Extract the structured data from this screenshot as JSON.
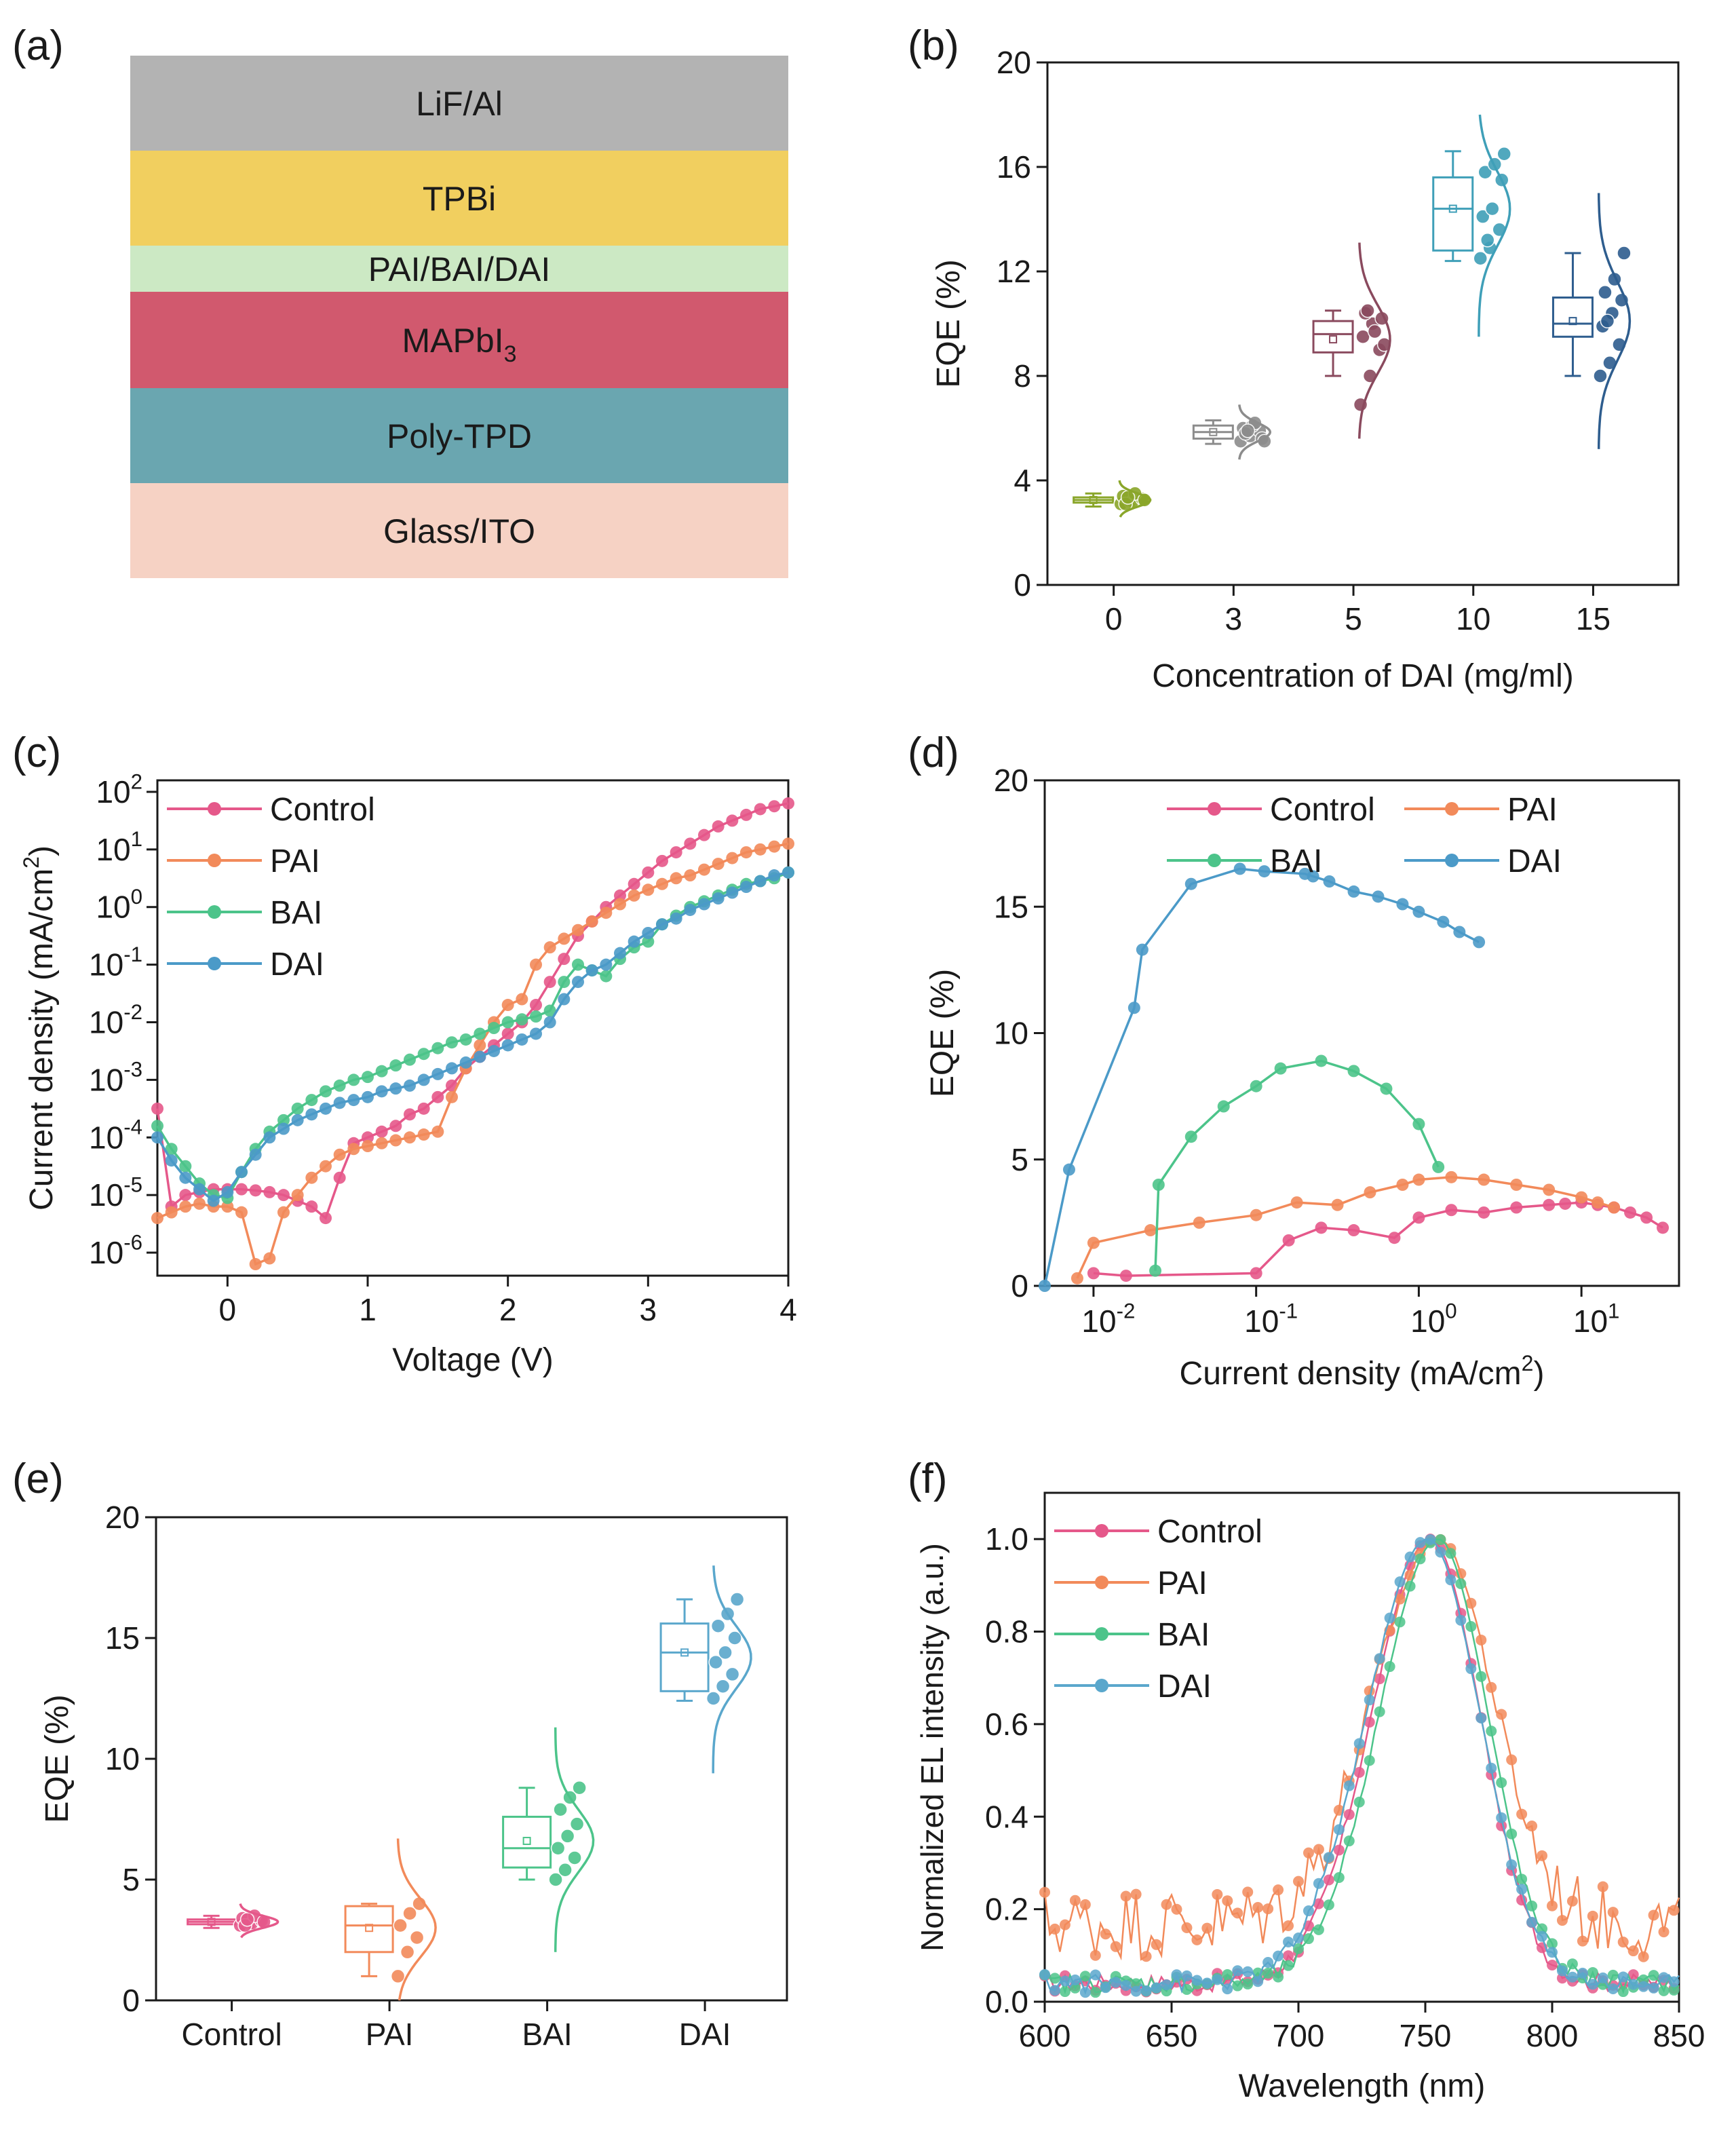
{
  "panels": {
    "a": {
      "label": "(a)",
      "layers": [
        {
          "name": "LiF/Al",
          "color": "#b3b3b3"
        },
        {
          "name": "TPBi",
          "color": "#f1cf5f"
        },
        {
          "name": "PAI/BAI/DAI",
          "color": "#cce9c4"
        },
        {
          "name": "MAPbI3",
          "color": "#d1596e"
        },
        {
          "name": "Poly-TPD",
          "color": "#6aa6b0"
        },
        {
          "name": "Glass/ITO",
          "color": "#f6d2c4"
        }
      ]
    },
    "b": {
      "label": "(b)"
    },
    "c": {
      "label": "(c)"
    },
    "d": {
      "label": "(d)"
    },
    "e": {
      "label": "(e)"
    },
    "f": {
      "label": "(f)"
    }
  },
  "chart_data": [
    {
      "panel": "b",
      "type": "box",
      "xlabel": "Concentration of DAI (mg/ml)",
      "ylabel": "EQE (%)",
      "ylim": [
        0,
        20
      ],
      "yticks": [
        0,
        4,
        8,
        12,
        16,
        20
      ],
      "categories": [
        "0",
        "3",
        "5",
        "10",
        "15"
      ],
      "colors": [
        "#8aa62a",
        "#8c8c8c",
        "#8a4a5e",
        "#3f9fb8",
        "#2e5d8e"
      ],
      "boxes": [
        {
          "min": 3.0,
          "q1": 3.15,
          "median": 3.25,
          "q3": 3.35,
          "max": 3.5,
          "mean": 3.25
        },
        {
          "min": 5.4,
          "q1": 5.6,
          "median": 5.85,
          "q3": 6.1,
          "max": 6.3,
          "mean": 5.85
        },
        {
          "min": 8.0,
          "q1": 8.9,
          "median": 9.6,
          "q3": 10.1,
          "max": 10.5,
          "mean": 9.4
        },
        {
          "min": 12.4,
          "q1": 12.8,
          "median": 14.4,
          "q3": 15.6,
          "max": 16.6,
          "mean": 14.4
        },
        {
          "min": 8.0,
          "q1": 9.5,
          "median": 10.0,
          "q3": 11.0,
          "max": 12.7,
          "mean": 10.1
        }
      ],
      "points": [
        [
          3.1,
          3.2,
          3.3,
          3.4,
          3.2,
          3.3,
          3.1,
          3.5,
          3.25,
          3.35
        ],
        [
          5.5,
          5.7,
          5.9,
          6.0,
          6.1,
          5.6,
          5.8,
          6.2,
          5.5,
          5.9
        ],
        [
          6.9,
          8.0,
          9.0,
          9.5,
          10.0,
          10.2,
          10.4,
          9.7,
          9.2,
          10.5
        ],
        [
          12.5,
          12.9,
          13.6,
          14.1,
          14.4,
          15.5,
          15.8,
          16.1,
          16.5,
          13.2
        ],
        [
          8.0,
          8.5,
          9.2,
          9.9,
          10.4,
          10.9,
          11.2,
          11.7,
          12.7,
          10.1
        ]
      ],
      "curves": [
        {
          "mean": 3.25,
          "sd": 0.25,
          "lo": 2.6,
          "hi": 4.0
        },
        {
          "mean": 5.85,
          "sd": 0.35,
          "lo": 4.8,
          "hi": 6.9
        },
        {
          "mean": 9.4,
          "sd": 1.3,
          "lo": 5.6,
          "hi": 13.1
        },
        {
          "mean": 14.4,
          "sd": 1.4,
          "lo": 9.5,
          "hi": 18.0
        },
        {
          "mean": 10.1,
          "sd": 1.5,
          "lo": 5.2,
          "hi": 15.0
        }
      ]
    },
    {
      "panel": "c",
      "type": "line",
      "yscale": "log",
      "xlabel": "Voltage (V)",
      "ylabel": "Current density (mA/cm",
      "ylabel_sup": "2",
      "ylabel_close": ")",
      "xlim": [
        -0.5,
        4
      ],
      "ylim_exp": [
        -6.4,
        2.2
      ],
      "xticks": [
        0,
        1,
        2,
        3,
        4
      ],
      "yticks_exp": [
        -6,
        -5,
        -4,
        -3,
        -2,
        -1,
        0,
        1,
        2
      ],
      "series": [
        {
          "name": "Control",
          "color": "#e5588a",
          "x": [
            -0.5,
            -0.4,
            -0.3,
            -0.2,
            -0.1,
            0.0,
            0.1,
            0.2,
            0.3,
            0.4,
            0.5,
            0.6,
            0.7,
            0.8,
            0.9,
            1.0,
            1.1,
            1.2,
            1.3,
            1.4,
            1.5,
            1.6,
            1.7,
            1.8,
            1.9,
            2.0,
            2.1,
            2.2,
            2.3,
            2.4,
            2.5,
            2.6,
            2.7,
            2.8,
            2.9,
            3.0,
            3.1,
            3.2,
            3.3,
            3.4,
            3.5,
            3.6,
            3.7,
            3.8,
            3.9,
            4.0
          ],
          "logy": [
            -3.5,
            -5.2,
            -5.0,
            -4.95,
            -4.9,
            -4.9,
            -4.9,
            -4.92,
            -4.95,
            -5.0,
            -5.1,
            -5.2,
            -5.4,
            -4.7,
            -4.1,
            -4.0,
            -3.9,
            -3.8,
            -3.6,
            -3.5,
            -3.3,
            -3.1,
            -2.8,
            -2.6,
            -2.4,
            -2.2,
            -2.0,
            -1.7,
            -1.3,
            -0.9,
            -0.5,
            -0.25,
            0.0,
            0.2,
            0.4,
            0.6,
            0.8,
            0.95,
            1.1,
            1.25,
            1.4,
            1.5,
            1.6,
            1.7,
            1.75,
            1.8
          ]
        },
        {
          "name": "PAI",
          "color": "#f28a5a",
          "x": [
            -0.5,
            -0.4,
            -0.3,
            -0.2,
            -0.1,
            0.0,
            0.1,
            0.2,
            0.3,
            0.4,
            0.5,
            0.6,
            0.7,
            0.8,
            0.9,
            1.0,
            1.1,
            1.2,
            1.3,
            1.4,
            1.5,
            1.6,
            1.7,
            1.8,
            1.9,
            2.0,
            2.1,
            2.2,
            2.3,
            2.4,
            2.5,
            2.6,
            2.7,
            2.8,
            2.9,
            3.0,
            3.1,
            3.2,
            3.3,
            3.4,
            3.5,
            3.6,
            3.7,
            3.8,
            3.9,
            4.0
          ],
          "logy": [
            -5.4,
            -5.3,
            -5.2,
            -5.15,
            -5.2,
            -5.2,
            -5.3,
            -6.2,
            -6.1,
            -5.3,
            -5.0,
            -4.7,
            -4.5,
            -4.3,
            -4.2,
            -4.15,
            -4.1,
            -4.05,
            -4.0,
            -3.95,
            -3.9,
            -3.3,
            -2.8,
            -2.4,
            -2.0,
            -1.7,
            -1.6,
            -1.0,
            -0.7,
            -0.55,
            -0.4,
            -0.25,
            -0.1,
            0.05,
            0.2,
            0.3,
            0.4,
            0.5,
            0.55,
            0.65,
            0.75,
            0.85,
            0.95,
            1.0,
            1.05,
            1.1
          ]
        },
        {
          "name": "BAI",
          "color": "#4cc48a",
          "x": [
            -0.5,
            -0.4,
            -0.3,
            -0.2,
            -0.1,
            0.0,
            0.1,
            0.2,
            0.3,
            0.4,
            0.5,
            0.6,
            0.7,
            0.8,
            0.9,
            1.0,
            1.1,
            1.2,
            1.3,
            1.4,
            1.5,
            1.6,
            1.7,
            1.8,
            1.9,
            2.0,
            2.1,
            2.2,
            2.3,
            2.4,
            2.5,
            2.6,
            2.7,
            2.8,
            2.9,
            3.0,
            3.1,
            3.2,
            3.3,
            3.4,
            3.5,
            3.6,
            3.7,
            3.8,
            3.9,
            4.0
          ],
          "logy": [
            -3.8,
            -4.2,
            -4.5,
            -4.8,
            -5.0,
            -5.05,
            -4.6,
            -4.2,
            -3.9,
            -3.7,
            -3.5,
            -3.35,
            -3.2,
            -3.1,
            -3.0,
            -2.95,
            -2.85,
            -2.75,
            -2.65,
            -2.55,
            -2.45,
            -2.35,
            -2.3,
            -2.2,
            -2.1,
            -2.0,
            -1.95,
            -1.9,
            -1.8,
            -1.3,
            -1.0,
            -1.1,
            -1.2,
            -0.9,
            -0.7,
            -0.6,
            -0.3,
            -0.15,
            0.0,
            0.1,
            0.2,
            0.3,
            0.4,
            0.45,
            0.5,
            0.6
          ]
        },
        {
          "name": "DAI",
          "color": "#4b9ac8",
          "x": [
            -0.5,
            -0.4,
            -0.3,
            -0.2,
            -0.1,
            0.0,
            0.1,
            0.2,
            0.3,
            0.4,
            0.5,
            0.6,
            0.7,
            0.8,
            0.9,
            1.0,
            1.1,
            1.2,
            1.3,
            1.4,
            1.5,
            1.6,
            1.7,
            1.8,
            1.9,
            2.0,
            2.1,
            2.2,
            2.3,
            2.4,
            2.5,
            2.6,
            2.7,
            2.8,
            2.9,
            3.0,
            3.1,
            3.2,
            3.3,
            3.4,
            3.5,
            3.6,
            3.7,
            3.8,
            3.9,
            4.0
          ],
          "logy": [
            -4.0,
            -4.4,
            -4.7,
            -4.9,
            -5.1,
            -4.95,
            -4.6,
            -4.3,
            -4.0,
            -3.85,
            -3.7,
            -3.6,
            -3.5,
            -3.4,
            -3.35,
            -3.3,
            -3.2,
            -3.15,
            -3.1,
            -3.0,
            -2.9,
            -2.8,
            -2.7,
            -2.6,
            -2.5,
            -2.4,
            -2.3,
            -2.2,
            -2.0,
            -1.6,
            -1.3,
            -1.1,
            -1.0,
            -0.8,
            -0.6,
            -0.45,
            -0.3,
            -0.2,
            -0.05,
            0.05,
            0.15,
            0.25,
            0.35,
            0.45,
            0.55,
            0.6
          ]
        }
      ]
    },
    {
      "panel": "d",
      "type": "line",
      "xscale": "log",
      "xlabel": "Current density (mA/cm",
      "xlabel_sup": "2",
      "xlabel_close": ")",
      "ylabel": "EQE (%)",
      "xlim_exp": [
        -2.3,
        1.6
      ],
      "ylim": [
        0,
        20
      ],
      "yticks": [
        0,
        5,
        10,
        15,
        20
      ],
      "xticks_exp": [
        -2,
        -1,
        0,
        1
      ],
      "series": [
        {
          "name": "Control",
          "color": "#e5588a",
          "logx": [
            -2.0,
            -1.8,
            -1.0,
            -0.8,
            -0.6,
            -0.4,
            -0.15,
            0.0,
            0.2,
            0.4,
            0.6,
            0.8,
            0.9,
            1.0,
            1.1,
            1.2,
            1.3,
            1.4,
            1.5
          ],
          "y": [
            0.5,
            0.4,
            0.5,
            1.8,
            2.3,
            2.2,
            1.9,
            2.7,
            3.0,
            2.9,
            3.1,
            3.2,
            3.25,
            3.3,
            3.2,
            3.1,
            2.9,
            2.7,
            2.3
          ]
        },
        {
          "name": "PAI",
          "color": "#f28a5a",
          "logx": [
            -2.1,
            -2.0,
            -1.65,
            -1.35,
            -1.0,
            -0.75,
            -0.5,
            -0.3,
            -0.1,
            0.0,
            0.2,
            0.4,
            0.6,
            0.8,
            1.0,
            1.1,
            1.2
          ],
          "y": [
            0.3,
            1.7,
            2.2,
            2.5,
            2.8,
            3.3,
            3.2,
            3.7,
            4.0,
            4.2,
            4.3,
            4.2,
            4.0,
            3.8,
            3.5,
            3.3,
            3.1
          ]
        },
        {
          "name": "BAI",
          "color": "#4cc48a",
          "logx": [
            -1.62,
            -1.6,
            -1.4,
            -1.2,
            -1.0,
            -0.85,
            -0.6,
            -0.4,
            -0.2,
            0.0,
            0.12
          ],
          "y": [
            0.6,
            4.0,
            5.9,
            7.1,
            7.9,
            8.6,
            8.9,
            8.5,
            7.8,
            6.4,
            4.7
          ]
        },
        {
          "name": "DAI",
          "color": "#4b9ac8",
          "logx": [
            -2.3,
            -2.15,
            -1.75,
            -1.7,
            -1.4,
            -1.1,
            -0.95,
            -0.7,
            -0.65,
            -0.55,
            -0.4,
            -0.25,
            -0.1,
            0.0,
            0.15,
            0.25,
            0.37
          ],
          "y": [
            0.0,
            4.6,
            11.0,
            13.3,
            15.9,
            16.5,
            16.4,
            16.3,
            16.2,
            16.0,
            15.6,
            15.4,
            15.1,
            14.8,
            14.4,
            14.0,
            13.6
          ]
        }
      ]
    },
    {
      "panel": "e",
      "type": "box",
      "xlabel": "",
      "ylabel": "EQE (%)",
      "ylim": [
        0,
        20
      ],
      "yticks": [
        0,
        5,
        10,
        15,
        20
      ],
      "categories": [
        "Control",
        "PAI",
        "BAI",
        "DAI"
      ],
      "colors": [
        "#e5588a",
        "#f28a5a",
        "#4cc48a",
        "#5aa7cc"
      ],
      "boxes": [
        {
          "min": 3.0,
          "q1": 3.15,
          "median": 3.25,
          "q3": 3.35,
          "max": 3.5,
          "mean": 3.25
        },
        {
          "min": 1.0,
          "q1": 2.0,
          "median": 3.1,
          "q3": 3.9,
          "max": 4.0,
          "mean": 3.0
        },
        {
          "min": 5.0,
          "q1": 5.5,
          "median": 6.3,
          "q3": 7.6,
          "max": 8.8,
          "mean": 6.6
        },
        {
          "min": 12.4,
          "q1": 12.8,
          "median": 14.4,
          "q3": 15.6,
          "max": 16.6,
          "mean": 14.4
        }
      ],
      "points": [
        [
          3.1,
          3.2,
          3.3,
          3.4,
          3.2,
          3.3,
          3.1,
          3.5,
          3.25,
          3.35
        ],
        [
          1.0,
          2.0,
          2.6,
          3.1,
          3.6,
          4.0
        ],
        [
          5.0,
          5.4,
          5.9,
          6.3,
          6.8,
          7.3,
          7.9,
          8.4,
          8.8
        ],
        [
          12.5,
          13.0,
          13.5,
          14.0,
          14.4,
          15.0,
          15.5,
          16.0,
          16.6
        ]
      ],
      "curves": [
        {
          "mean": 3.25,
          "sd": 0.25,
          "lo": 2.6,
          "hi": 4.0
        },
        {
          "mean": 3.0,
          "sd": 1.2,
          "lo": 0.0,
          "hi": 6.7
        },
        {
          "mean": 6.6,
          "sd": 1.3,
          "lo": 2.0,
          "hi": 11.3
        },
        {
          "mean": 14.2,
          "sd": 1.3,
          "lo": 9.4,
          "hi": 18.0
        }
      ]
    },
    {
      "panel": "f",
      "type": "line",
      "xlabel": "Wavelength (nm)",
      "ylabel": "Normalized EL intensity (a.u.)",
      "xlim": [
        600,
        850
      ],
      "ylim": [
        0,
        1.1
      ],
      "xticks": [
        600,
        650,
        700,
        750,
        800,
        850
      ],
      "yticks": [
        0.0,
        0.2,
        0.4,
        0.6,
        0.8,
        1.0
      ],
      "ytick_labels": [
        "0.0",
        "0.2",
        "0.4",
        "0.6",
        "0.8",
        "1.0"
      ],
      "series": [
        {
          "name": "Control",
          "color": "#e5588a",
          "peak": 752,
          "width": 22,
          "base": 0.04,
          "noise": 0.02
        },
        {
          "name": "PAI",
          "color": "#f28a5a",
          "peak": 755,
          "width": 24,
          "base": 0.17,
          "noise": 0.08
        },
        {
          "name": "BAI",
          "color": "#4cc48a",
          "peak": 755,
          "width": 22,
          "base": 0.04,
          "noise": 0.02
        },
        {
          "name": "DAI",
          "color": "#5aa7cc",
          "peak": 751,
          "width": 23,
          "base": 0.04,
          "noise": 0.02
        }
      ]
    }
  ]
}
